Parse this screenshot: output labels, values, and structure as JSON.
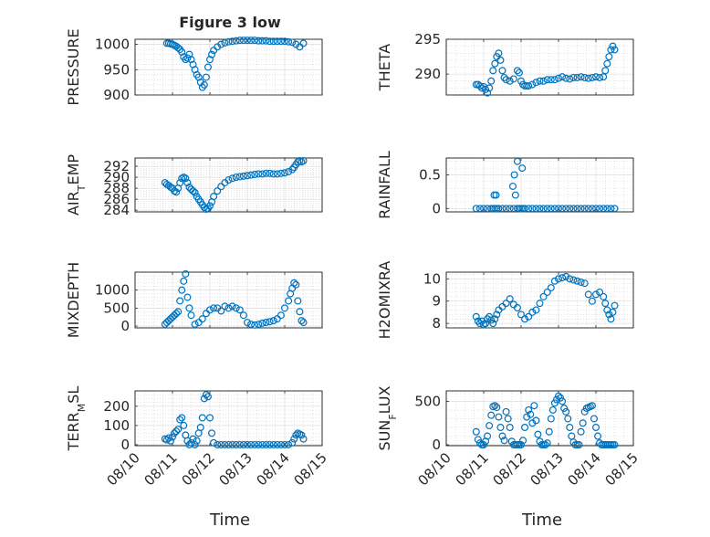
{
  "figure": {
    "title": "Figure 3 low",
    "marker_color": "#0072BD",
    "x_tick_labels": [
      "08/10",
      "08/11",
      "08/12",
      "08/13",
      "08/14",
      "08/15"
    ],
    "x_label": "Time"
  },
  "chart_data": [
    {
      "type": "scatter",
      "title": "Figure 3 low",
      "xlabel": "",
      "ylabel": "PRESSURE",
      "xlim": [
        0,
        5
      ],
      "ylim": [
        900,
        1010
      ],
      "yticks": [
        900,
        950,
        1000
      ],
      "y_tick_labels": [
        "900",
        "950",
        "1000"
      ],
      "grid": true,
      "x": [
        0.85,
        0.9,
        0.95,
        1.0,
        1.05,
        1.1,
        1.15,
        1.2,
        1.25,
        1.3,
        1.35,
        1.4,
        1.45,
        1.5,
        1.55,
        1.6,
        1.65,
        1.7,
        1.75,
        1.8,
        1.85,
        1.9,
        1.95,
        2.0,
        2.05,
        2.1,
        2.2,
        2.3,
        2.4,
        2.5,
        2.6,
        2.7,
        2.8,
        2.9,
        3.0,
        3.1,
        3.2,
        3.3,
        3.4,
        3.5,
        3.6,
        3.7,
        3.8,
        3.9,
        4.0,
        4.1,
        4.2,
        4.3,
        4.4,
        4.5
      ],
      "y": [
        1002,
        1002,
        1001,
        1000,
        998,
        996,
        993,
        990,
        985,
        975,
        970,
        973,
        980,
        970,
        960,
        950,
        940,
        935,
        925,
        915,
        920,
        935,
        955,
        970,
        980,
        988,
        995,
        1000,
        1003,
        1005,
        1006,
        1007,
        1008,
        1008,
        1008,
        1008,
        1008,
        1007,
        1007,
        1007,
        1006,
        1006,
        1006,
        1006,
        1006,
        1005,
        1004,
        1000,
        995,
        1002
      ]
    },
    {
      "type": "scatter",
      "title": "",
      "xlabel": "",
      "ylabel": "THETA",
      "xlim": [
        0,
        5
      ],
      "ylim": [
        287,
        295
      ],
      "yticks": [
        290,
        295
      ],
      "y_tick_labels": [
        "290",
        "295"
      ],
      "grid": true,
      "x": [
        0.8,
        0.85,
        0.9,
        0.95,
        1.0,
        1.05,
        1.1,
        1.15,
        1.2,
        1.25,
        1.3,
        1.35,
        1.4,
        1.45,
        1.5,
        1.55,
        1.6,
        1.7,
        1.8,
        1.9,
        1.95,
        2.0,
        2.05,
        2.1,
        2.15,
        2.2,
        2.3,
        2.4,
        2.5,
        2.6,
        2.7,
        2.8,
        2.9,
        3.0,
        3.1,
        3.2,
        3.3,
        3.4,
        3.5,
        3.6,
        3.7,
        3.8,
        3.9,
        4.0,
        4.1,
        4.2,
        4.25,
        4.3,
        4.35,
        4.4,
        4.45,
        4.5
      ],
      "y": [
        288.5,
        288.5,
        288.3,
        288.0,
        288.2,
        287.8,
        287.3,
        288.0,
        289.0,
        290.5,
        291.5,
        292.5,
        293.0,
        292.0,
        290.5,
        289.5,
        289.2,
        289.0,
        289.3,
        290.5,
        290.2,
        289.0,
        288.5,
        288.3,
        288.3,
        288.3,
        288.5,
        288.8,
        289.0,
        289.0,
        289.2,
        289.2,
        289.2,
        289.4,
        289.6,
        289.4,
        289.3,
        289.5,
        289.5,
        289.6,
        289.5,
        289.4,
        289.5,
        289.6,
        289.5,
        289.6,
        290.5,
        291.5,
        292.5,
        293.5,
        294.0,
        293.5
      ]
    },
    {
      "type": "scatter",
      "title": "",
      "xlabel": "",
      "ylabel": "AIR_T_EMP",
      "xlim": [
        0,
        5
      ],
      "ylim": [
        283.7,
        293.5
      ],
      "yticks": [
        284,
        286,
        288,
        290,
        292
      ],
      "y_tick_labels": [
        "284",
        "286",
        "288",
        "290",
        "292"
      ],
      "grid": true,
      "x": [
        0.8,
        0.85,
        0.9,
        0.95,
        1.0,
        1.05,
        1.1,
        1.15,
        1.2,
        1.25,
        1.3,
        1.35,
        1.4,
        1.45,
        1.5,
        1.55,
        1.6,
        1.65,
        1.7,
        1.75,
        1.8,
        1.85,
        1.9,
        1.95,
        2.0,
        2.05,
        2.1,
        2.2,
        2.3,
        2.4,
        2.5,
        2.6,
        2.7,
        2.8,
        2.9,
        3.0,
        3.1,
        3.2,
        3.3,
        3.4,
        3.5,
        3.6,
        3.7,
        3.8,
        3.9,
        4.0,
        4.1,
        4.2,
        4.25,
        4.3,
        4.35,
        4.4,
        4.45,
        4.5
      ],
      "y": [
        289,
        288.7,
        288.5,
        288.2,
        288,
        287.5,
        287.3,
        288,
        289,
        289.8,
        290,
        289.8,
        289,
        288.2,
        287.8,
        287.5,
        287.2,
        286.5,
        286,
        285.5,
        285,
        284.5,
        284.2,
        284.3,
        284.8,
        285.5,
        286.5,
        287.5,
        288.3,
        289,
        289.5,
        289.8,
        290,
        290.1,
        290.2,
        290.3,
        290.4,
        290.5,
        290.6,
        290.6,
        290.7,
        290.7,
        290.6,
        290.6,
        290.7,
        290.8,
        291,
        291.4,
        291.8,
        292.3,
        292.8,
        293,
        292.8,
        293
      ]
    },
    {
      "type": "scatter",
      "title": "",
      "xlabel": "",
      "ylabel": "RAINFALL",
      "xlim": [
        0,
        5
      ],
      "ylim": [
        -0.05,
        0.75
      ],
      "yticks": [
        0,
        0.5
      ],
      "y_tick_labels": [
        "0",
        "0.5"
      ],
      "grid": true,
      "x": [
        0.8,
        0.9,
        1.0,
        1.1,
        1.2,
        1.25,
        1.3,
        1.35,
        1.4,
        1.5,
        1.6,
        1.7,
        1.8,
        1.9,
        1.95,
        2.0,
        2.05,
        2.1,
        2.2,
        2.3,
        2.4,
        2.5,
        2.6,
        2.7,
        2.8,
        2.9,
        3.0,
        3.1,
        3.2,
        3.3,
        3.4,
        3.5,
        3.6,
        3.7,
        3.8,
        3.9,
        4.0,
        4.1,
        4.2,
        4.3,
        4.4,
        4.5,
        1.28,
        1.33,
        1.78,
        1.82,
        1.85,
        1.9,
        2.03
      ],
      "y": [
        0,
        0,
        0,
        0,
        0,
        0,
        0,
        0,
        0,
        0,
        0,
        0,
        0,
        0,
        0,
        0,
        0,
        0,
        0,
        0,
        0,
        0,
        0,
        0,
        0,
        0,
        0,
        0,
        0,
        0,
        0,
        0,
        0,
        0,
        0,
        0,
        0,
        0,
        0,
        0,
        0,
        0,
        0.2,
        0.2,
        0.33,
        0.5,
        0.2,
        0.7,
        0.6
      ]
    },
    {
      "type": "scatter",
      "title": "",
      "xlabel": "",
      "ylabel": "MIXDEPTH",
      "xlim": [
        0,
        5
      ],
      "ylim": [
        -50,
        1500
      ],
      "yticks": [
        0,
        500,
        1000
      ],
      "y_tick_labels": [
        "0",
        "500",
        "1000"
      ],
      "grid": true,
      "x": [
        0.8,
        0.85,
        0.9,
        0.95,
        1.0,
        1.05,
        1.1,
        1.15,
        1.2,
        1.25,
        1.3,
        1.35,
        1.4,
        1.45,
        1.5,
        1.6,
        1.7,
        1.8,
        1.9,
        2.0,
        2.1,
        2.2,
        2.3,
        2.4,
        2.5,
        2.6,
        2.7,
        2.8,
        2.9,
        3.0,
        3.1,
        3.2,
        3.3,
        3.4,
        3.5,
        3.6,
        3.7,
        3.8,
        3.9,
        4.0,
        4.1,
        4.15,
        4.2,
        4.25,
        4.3,
        4.35,
        4.4,
        4.45,
        4.5
      ],
      "y": [
        50,
        100,
        150,
        200,
        250,
        300,
        350,
        400,
        700,
        1000,
        1250,
        1450,
        800,
        500,
        300,
        50,
        100,
        200,
        350,
        450,
        500,
        500,
        420,
        550,
        500,
        550,
        500,
        450,
        300,
        100,
        50,
        30,
        50,
        80,
        100,
        120,
        150,
        200,
        300,
        500,
        700,
        900,
        1050,
        1200,
        1150,
        700,
        400,
        150,
        100
      ]
    },
    {
      "type": "scatter",
      "title": "",
      "xlabel": "",
      "ylabel": "H2OMIXRA",
      "xlim": [
        0,
        5
      ],
      "ylim": [
        7.8,
        10.3
      ],
      "yticks": [
        8,
        9,
        10
      ],
      "y_tick_labels": [
        "8",
        "9",
        "10"
      ],
      "grid": true,
      "x": [
        0.8,
        0.85,
        0.9,
        0.95,
        1.0,
        1.05,
        1.1,
        1.15,
        1.2,
        1.25,
        1.3,
        1.35,
        1.4,
        1.5,
        1.6,
        1.7,
        1.8,
        1.9,
        2.0,
        2.1,
        2.2,
        2.3,
        2.4,
        2.5,
        2.6,
        2.7,
        2.8,
        2.9,
        3.0,
        3.1,
        3.2,
        3.3,
        3.4,
        3.5,
        3.6,
        3.7,
        3.8,
        3.9,
        4.0,
        4.1,
        4.2,
        4.25,
        4.3,
        4.35,
        4.4,
        4.45,
        4.5
      ],
      "y": [
        8.3,
        8.1,
        8.0,
        8.1,
        7.95,
        8.0,
        8.2,
        8.3,
        8.15,
        8.0,
        8.2,
        8.4,
        8.6,
        8.75,
        8.9,
        9.1,
        8.85,
        8.7,
        8.4,
        8.2,
        8.3,
        8.5,
        8.6,
        8.9,
        9.2,
        9.4,
        9.6,
        9.9,
        10.0,
        10.05,
        10.1,
        10.0,
        9.95,
        9.9,
        9.85,
        9.8,
        9.3,
        9.0,
        9.3,
        9.4,
        9.2,
        8.9,
        8.6,
        8.4,
        8.2,
        8.5,
        8.8
      ]
    },
    {
      "type": "scatter",
      "title": "",
      "xlabel": "Time",
      "ylabel": "TERR_M_SL",
      "xlim": [
        0,
        5
      ],
      "ylim": [
        -5,
        280
      ],
      "yticks": [
        0,
        100,
        200
      ],
      "y_tick_labels": [
        "0",
        "100",
        "200"
      ],
      "grid": true,
      "x": [
        0.8,
        0.85,
        0.9,
        0.95,
        1.0,
        1.05,
        1.1,
        1.15,
        1.2,
        1.25,
        1.3,
        1.35,
        1.4,
        1.45,
        1.5,
        1.55,
        1.6,
        1.65,
        1.7,
        1.75,
        1.8,
        1.85,
        1.9,
        1.95,
        2.0,
        2.05,
        2.1,
        2.2,
        2.3,
        2.4,
        2.5,
        2.6,
        2.7,
        2.8,
        2.9,
        3.0,
        3.1,
        3.2,
        3.3,
        3.4,
        3.5,
        3.6,
        3.7,
        3.8,
        3.9,
        4.0,
        4.1,
        4.2,
        4.25,
        4.3,
        4.35,
        4.4,
        4.45,
        4.5
      ],
      "y": [
        30,
        25,
        35,
        20,
        40,
        60,
        70,
        80,
        130,
        140,
        100,
        50,
        20,
        0,
        10,
        30,
        0,
        20,
        60,
        90,
        140,
        240,
        260,
        250,
        140,
        60,
        10,
        0,
        0,
        0,
        0,
        0,
        0,
        0,
        0,
        0,
        0,
        0,
        0,
        0,
        0,
        0,
        0,
        0,
        0,
        0,
        0,
        10,
        30,
        50,
        60,
        55,
        50,
        30
      ]
    },
    {
      "type": "scatter",
      "title": "",
      "xlabel": "Time",
      "ylabel": "SUN_F_LUX",
      "xlim": [
        0,
        5
      ],
      "ylim": [
        -10,
        620
      ],
      "yticks": [
        0,
        500
      ],
      "y_tick_labels": [
        "0",
        "500"
      ],
      "grid": true,
      "x": [
        0.8,
        0.85,
        0.9,
        0.95,
        1.0,
        1.05,
        1.1,
        1.15,
        1.2,
        1.25,
        1.3,
        1.35,
        1.4,
        1.45,
        1.5,
        1.55,
        1.6,
        1.65,
        1.7,
        1.75,
        1.8,
        1.85,
        1.9,
        1.95,
        2.0,
        2.05,
        2.1,
        2.15,
        2.2,
        2.25,
        2.3,
        2.35,
        2.4,
        2.45,
        2.5,
        2.55,
        2.6,
        2.65,
        2.7,
        2.75,
        2.8,
        2.85,
        2.9,
        2.95,
        3.0,
        3.05,
        3.1,
        3.15,
        3.2,
        3.25,
        3.3,
        3.35,
        3.4,
        3.45,
        3.5,
        3.55,
        3.6,
        3.65,
        3.7,
        3.75,
        3.8,
        3.85,
        3.9,
        3.95,
        4.0,
        4.05,
        4.1,
        4.15,
        4.2,
        4.25,
        4.3,
        4.35,
        4.4,
        4.45,
        4.5
      ],
      "y": [
        150,
        60,
        20,
        0,
        0,
        40,
        100,
        220,
        340,
        440,
        450,
        430,
        320,
        200,
        100,
        50,
        380,
        300,
        200,
        40,
        0,
        0,
        0,
        0,
        0,
        50,
        200,
        320,
        400,
        350,
        250,
        450,
        280,
        120,
        40,
        0,
        0,
        0,
        20,
        150,
        300,
        400,
        480,
        520,
        560,
        540,
        500,
        420,
        380,
        300,
        200,
        100,
        30,
        0,
        0,
        0,
        150,
        250,
        380,
        420,
        430,
        440,
        450,
        300,
        200,
        100,
        20,
        0,
        0,
        0,
        0,
        0,
        0,
        0,
        0
      ]
    }
  ]
}
